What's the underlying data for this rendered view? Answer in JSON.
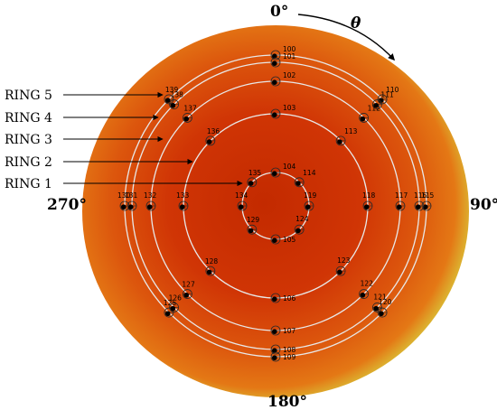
{
  "angle_labels": {
    "top": "0°",
    "right": "90°",
    "bottom": "180°",
    "left": "270°"
  },
  "direction_symbol": "θ",
  "ring_labels": [
    "RING 1",
    "RING 2",
    "RING 3",
    "RING 4",
    "RING 5"
  ],
  "colors": {
    "disc_center": "#c32a00",
    "disc_mid": "#d6400a",
    "disc_outer": "#e47815",
    "disc_edge": "#d9c83a",
    "ring_line": "#e8e8e8",
    "marker": "#000000"
  },
  "nodes": [
    {
      "id": "100",
      "ring": 5,
      "angle": 0
    },
    {
      "id": "101",
      "ring": 4,
      "angle": 0
    },
    {
      "id": "102",
      "ring": 3,
      "angle": 0
    },
    {
      "id": "103",
      "ring": 2,
      "angle": 0
    },
    {
      "id": "104",
      "ring": 1,
      "angle": 0
    },
    {
      "id": "105",
      "ring": 1,
      "angle": 180
    },
    {
      "id": "106",
      "ring": 2,
      "angle": 180
    },
    {
      "id": "107",
      "ring": 3,
      "angle": 180
    },
    {
      "id": "108",
      "ring": 4,
      "angle": 180
    },
    {
      "id": "109",
      "ring": 5,
      "angle": 180
    },
    {
      "id": "110",
      "ring": 5,
      "angle": 45
    },
    {
      "id": "111",
      "ring": 4,
      "angle": 45
    },
    {
      "id": "112",
      "ring": 3,
      "angle": 45
    },
    {
      "id": "113",
      "ring": 2,
      "angle": 45
    },
    {
      "id": "114",
      "ring": 1,
      "angle": 45
    },
    {
      "id": "115",
      "ring": 5,
      "angle": 90
    },
    {
      "id": "116",
      "ring": 4,
      "angle": 90
    },
    {
      "id": "117",
      "ring": 3,
      "angle": 90
    },
    {
      "id": "118",
      "ring": 2,
      "angle": 90
    },
    {
      "id": "119",
      "ring": 1,
      "angle": 90
    },
    {
      "id": "120",
      "ring": 5,
      "angle": 135
    },
    {
      "id": "121",
      "ring": 4,
      "angle": 135
    },
    {
      "id": "122",
      "ring": 3,
      "angle": 135
    },
    {
      "id": "123",
      "ring": 2,
      "angle": 135
    },
    {
      "id": "124",
      "ring": 1,
      "angle": 135
    },
    {
      "id": "125",
      "ring": 5,
      "angle": 225
    },
    {
      "id": "126",
      "ring": 4,
      "angle": 225
    },
    {
      "id": "127",
      "ring": 3,
      "angle": 225
    },
    {
      "id": "128",
      "ring": 2,
      "angle": 225
    },
    {
      "id": "129",
      "ring": 1,
      "angle": 225
    },
    {
      "id": "130",
      "ring": 5,
      "angle": 270
    },
    {
      "id": "131",
      "ring": 4,
      "angle": 270
    },
    {
      "id": "132",
      "ring": 3,
      "angle": 270
    },
    {
      "id": "133",
      "ring": 2,
      "angle": 270
    },
    {
      "id": "134",
      "ring": 1,
      "angle": 270
    },
    {
      "id": "135",
      "ring": 1,
      "angle": 315
    },
    {
      "id": "136",
      "ring": 2,
      "angle": 315
    },
    {
      "id": "137",
      "ring": 3,
      "angle": 315
    },
    {
      "id": "138",
      "ring": 4,
      "angle": 315
    },
    {
      "id": "139",
      "ring": 5,
      "angle": 315
    }
  ]
}
